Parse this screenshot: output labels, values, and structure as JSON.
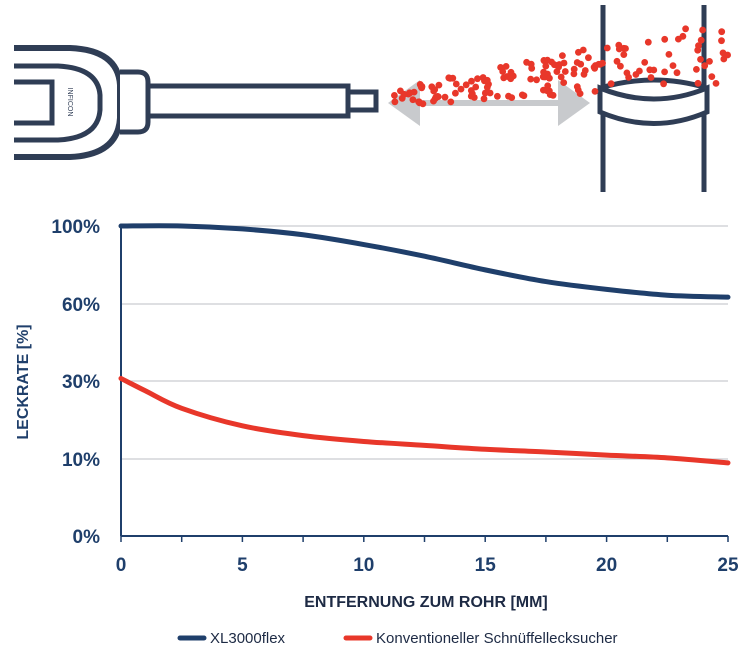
{
  "illustration": {
    "logo_text": "INFICON"
  },
  "chart_data": {
    "type": "line",
    "xlabel": "ENTFERNUNG ZUM ROHR [MM]",
    "ylabel": "LECKRATE [%]",
    "xlim": [
      0,
      25
    ],
    "ylim": [
      0,
      100
    ],
    "x_ticks": [
      0,
      5,
      10,
      15,
      20,
      25
    ],
    "y_ticks": [
      0,
      10,
      30,
      60,
      100
    ],
    "y_tick_labels": [
      "0%",
      "10%",
      "30%",
      "60%",
      "100%"
    ],
    "grid": true,
    "legend_position": "bottom",
    "series": [
      {
        "name": "XL3000flex",
        "color": "#1f3f6b",
        "x": [
          0,
          2.5,
          5,
          7.5,
          10,
          12.5,
          15,
          17.5,
          20,
          22.5,
          25
        ],
        "y": [
          100,
          100,
          98.5,
          95.5,
          90.5,
          84.5,
          77.5,
          71.5,
          67.5,
          64.5,
          63.5
        ]
      },
      {
        "name": "Konventioneller Schnüffellecksucher",
        "color": "#e8372a",
        "x": [
          0,
          1,
          2.5,
          5,
          7.5,
          10,
          12.5,
          15,
          17.5,
          20,
          22.5,
          25
        ],
        "y": [
          31,
          27.5,
          23,
          18.5,
          16,
          14.5,
          13.5,
          12.5,
          11.8,
          11,
          10.3,
          9.5
        ]
      }
    ]
  }
}
